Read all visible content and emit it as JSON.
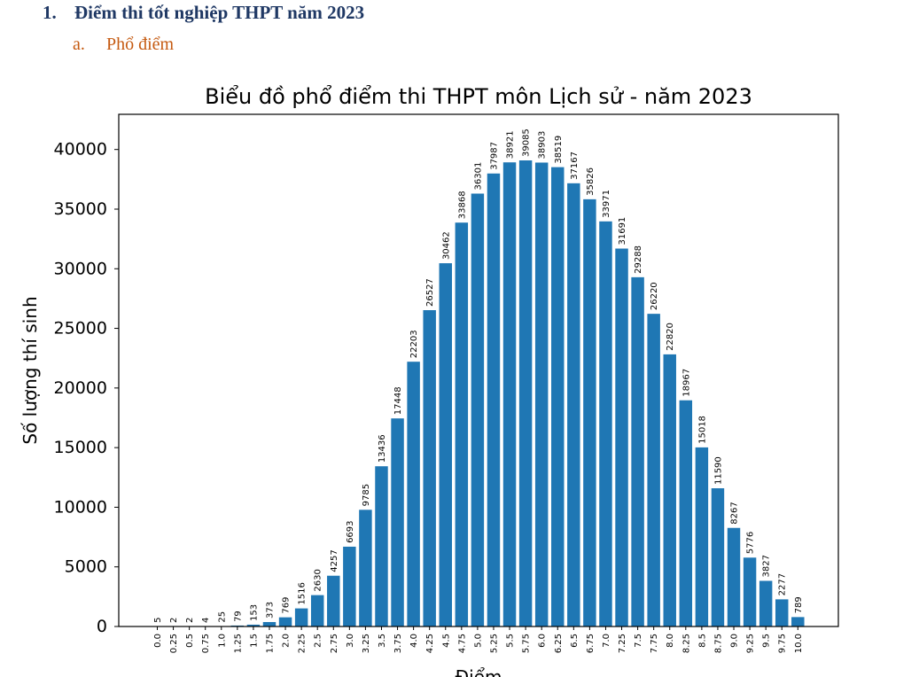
{
  "document": {
    "heading_number": "1.",
    "heading_text": "Điểm thi tốt nghiệp THPT năm 2023",
    "sub_number": "a.",
    "sub_text": "Phổ điểm"
  },
  "chart_data": {
    "type": "bar",
    "title": "Biểu đồ phổ điểm thi THPT môn Lịch sử - năm 2023",
    "xlabel": "Điểm",
    "ylabel": "Số lượng thí sinh",
    "categories": [
      "0.0",
      "0.25",
      "0.5",
      "0.75",
      "1.0",
      "1.25",
      "1.5",
      "1.75",
      "2.0",
      "2.25",
      "2.5",
      "2.75",
      "3.0",
      "3.25",
      "3.5",
      "3.75",
      "4.0",
      "4.25",
      "4.5",
      "4.75",
      "5.0",
      "5.25",
      "5.5",
      "5.75",
      "6.0",
      "6.25",
      "6.5",
      "6.75",
      "7.0",
      "7.25",
      "7.5",
      "7.75",
      "8.0",
      "8.25",
      "8.5",
      "8.75",
      "9.0",
      "9.25",
      "9.5",
      "9.75",
      "10.0"
    ],
    "values": [
      5,
      2,
      2,
      4,
      25,
      79,
      153,
      373,
      769,
      1516,
      2630,
      4257,
      6693,
      9785,
      13436,
      17448,
      22203,
      26527,
      30462,
      33868,
      36301,
      37987,
      38921,
      39085,
      38903,
      38519,
      37167,
      35826,
      33971,
      31691,
      29288,
      26220,
      22820,
      18967,
      15018,
      11590,
      8267,
      5776,
      3827,
      2277,
      789
    ],
    "yticks": [
      0,
      5000,
      10000,
      15000,
      20000,
      25000,
      30000,
      35000,
      40000
    ],
    "ylim": [
      0,
      42950
    ],
    "bar_color": "#1f77b4",
    "grid": false
  }
}
